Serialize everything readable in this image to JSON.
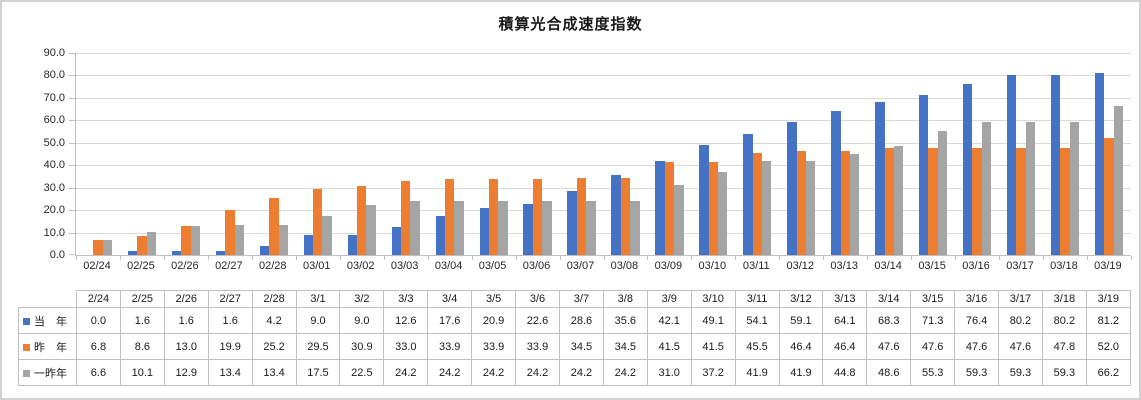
{
  "chart_data": {
    "type": "bar",
    "title": "積算光合成速度指数",
    "xlabel": "",
    "ylabel": "",
    "ylim": [
      0,
      90
    ],
    "ytick_labels": [
      "0.0",
      "10.0",
      "20.0",
      "30.0",
      "40.0",
      "50.0",
      "60.0",
      "70.0",
      "80.0",
      "90.0"
    ],
    "grid": true,
    "legend_position": "table-left",
    "value_format": "one-decimal",
    "categories": [
      "02/24",
      "02/25",
      "02/26",
      "02/27",
      "02/28",
      "03/01",
      "03/02",
      "03/03",
      "03/04",
      "03/05",
      "03/06",
      "03/07",
      "03/08",
      "03/09",
      "03/10",
      "03/11",
      "03/12",
      "03/13",
      "03/14",
      "03/15",
      "03/16",
      "03/17",
      "03/18",
      "03/19"
    ],
    "table_categories": [
      "2/24",
      "2/25",
      "2/26",
      "2/27",
      "2/28",
      "3/1",
      "3/2",
      "3/3",
      "3/4",
      "3/5",
      "3/6",
      "3/7",
      "3/8",
      "3/9",
      "3/10",
      "3/11",
      "3/12",
      "3/13",
      "3/14",
      "3/15",
      "3/16",
      "3/17",
      "3/18",
      "3/19"
    ],
    "series": [
      {
        "name": "当　年",
        "color": "#4472C4",
        "values": [
          0.0,
          1.6,
          1.6,
          1.6,
          4.2,
          9.0,
          9.0,
          12.6,
          17.6,
          20.9,
          22.6,
          28.6,
          35.6,
          42.1,
          49.1,
          54.1,
          59.1,
          64.1,
          68.3,
          71.3,
          76.4,
          80.2,
          80.2,
          81.2
        ]
      },
      {
        "name": "昨　年",
        "color": "#ED7D31",
        "values": [
          6.8,
          8.6,
          13.0,
          19.9,
          25.2,
          29.5,
          30.9,
          33.0,
          33.9,
          33.9,
          33.9,
          34.5,
          34.5,
          41.5,
          41.5,
          45.5,
          46.4,
          46.4,
          47.6,
          47.6,
          47.6,
          47.6,
          47.8,
          52.0
        ]
      },
      {
        "name": "一昨年",
        "color": "#A5A5A5",
        "values": [
          6.6,
          10.1,
          12.9,
          13.4,
          13.4,
          17.5,
          22.5,
          24.2,
          24.2,
          24.2,
          24.2,
          24.2,
          24.2,
          31.0,
          37.2,
          41.9,
          41.9,
          44.8,
          48.6,
          55.3,
          59.3,
          59.3,
          59.3,
          66.2
        ]
      }
    ],
    "colors": {
      "gridline": "#D9D9D9",
      "axis": "#BFBFBF",
      "table_border": "#BFBFBF",
      "text": "#262626"
    }
  }
}
